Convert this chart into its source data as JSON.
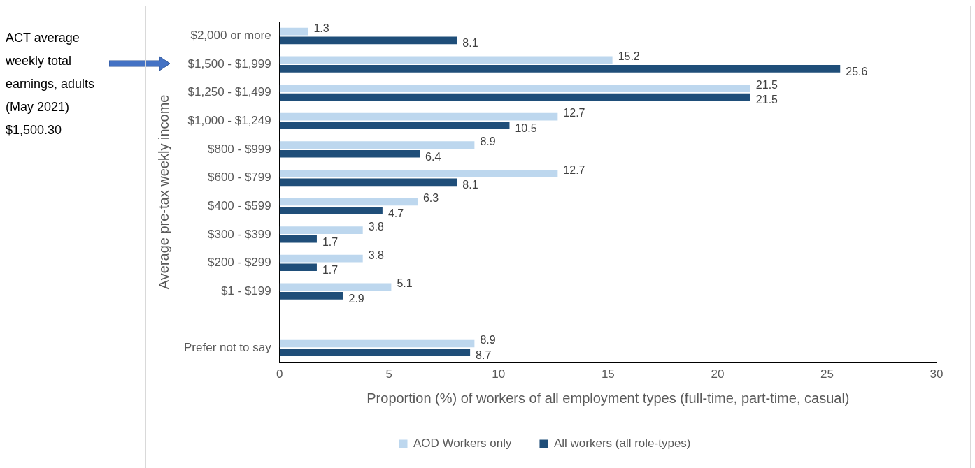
{
  "chart_data": {
    "type": "bar",
    "orientation": "horizontal",
    "ylabel": "Average pre-tax weekly income",
    "xlabel": "Proportion (%) of workers of all employment types (full-time, part-time, casual)",
    "categories": [
      "$2,000 or more",
      "$1,500 - $1,999",
      "$1,250 - $1,499",
      "$1,000 - $1,249",
      "$800 - $999",
      "$600 - $799",
      "$400 - $599",
      "$300 - $399",
      "$200 - $299",
      "$1 - $199",
      null,
      "Prefer not to say"
    ],
    "series": [
      {
        "name": "AOD Workers only",
        "color": "#bdd7ee",
        "values": [
          1.3,
          15.2,
          21.5,
          12.7,
          8.9,
          12.7,
          6.3,
          3.8,
          3.8,
          5.1,
          null,
          8.9
        ]
      },
      {
        "name": "All workers (all role-types)",
        "color": "#1f4e79",
        "values": [
          8.1,
          25.6,
          21.5,
          10.5,
          6.4,
          8.1,
          4.7,
          1.7,
          1.7,
          2.9,
          null,
          8.7
        ]
      }
    ],
    "xlim": [
      0,
      30
    ],
    "xticks": [
      0,
      5,
      10,
      15,
      20,
      25,
      30
    ],
    "grid": false,
    "legend": "bottom",
    "data_labels": true,
    "annotations": [
      "ACT average weekly total earnings, adults (May 2021) $1,500.30"
    ]
  }
}
